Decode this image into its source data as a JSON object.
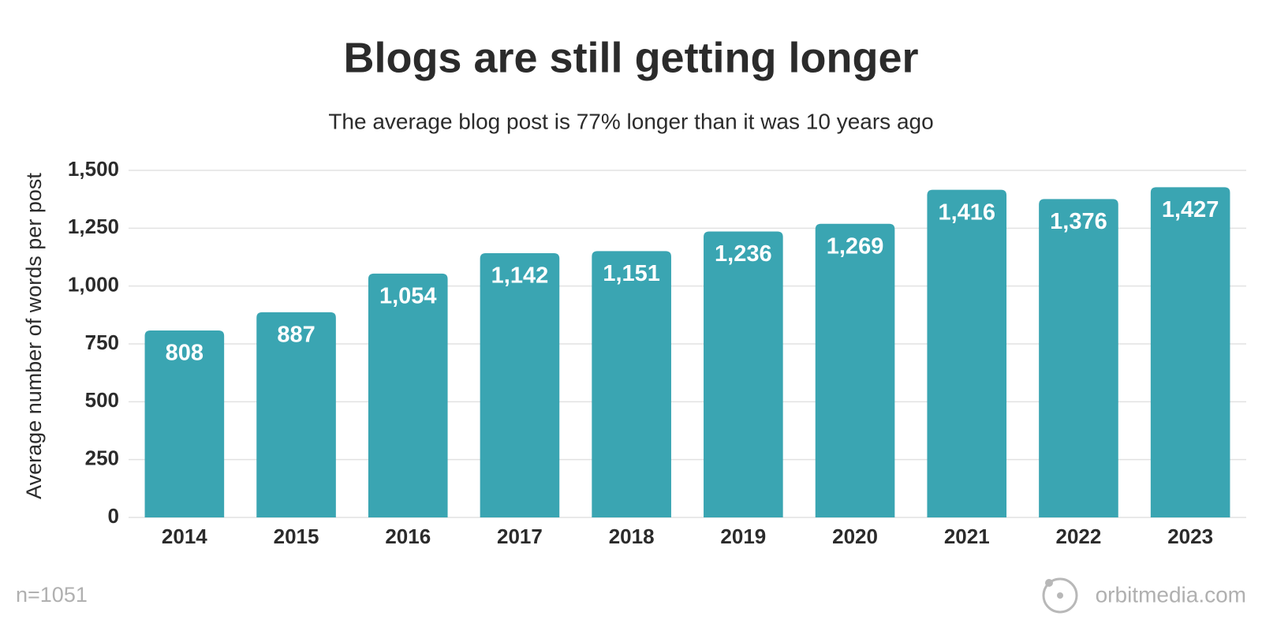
{
  "chart_data": {
    "type": "bar",
    "title": "Blogs are still getting longer",
    "subtitle": "The average blog post is 77% longer than it was 10 years ago",
    "y_label": "Average number of words per post",
    "categories": [
      "2014",
      "2015",
      "2016",
      "2017",
      "2018",
      "2019",
      "2020",
      "2021",
      "2022",
      "2023"
    ],
    "values": [
      808,
      887,
      1054,
      1142,
      1151,
      1236,
      1269,
      1416,
      1376,
      1427
    ],
    "value_labels": [
      "808",
      "887",
      "1,054",
      "1,142",
      "1,151",
      "1,236",
      "1,269",
      "1,416",
      "1,376",
      "1,427"
    ],
    "color": "#3aa5b2",
    "ylim": [
      0,
      1500
    ],
    "yticks": [
      0,
      250,
      500,
      750,
      {
        "value": 1000,
        "label": "1,000"
      },
      {
        "value": 1250,
        "label": "1,250"
      },
      {
        "value": 1500,
        "label": "1,500"
      }
    ],
    "grid": true,
    "note": "n=1051"
  },
  "footer": {
    "logo": "orbitmedia.com"
  }
}
